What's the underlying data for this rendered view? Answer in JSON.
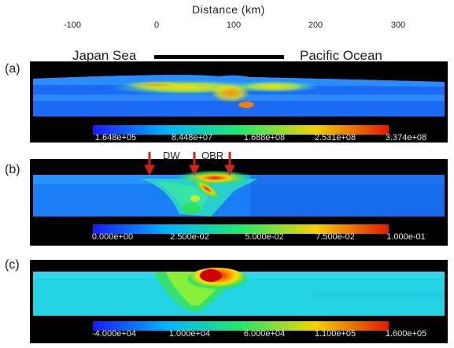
{
  "axis": {
    "title": "Distance (km)",
    "ticks": [
      "-100",
      "0",
      "100",
      "200",
      "300"
    ]
  },
  "regions": {
    "left": "Japan Sea",
    "right": "Pacific Ocean"
  },
  "panels": [
    {
      "label": "(a)",
      "colorbar": [
        "1.648e+05",
        "8.448e+07",
        "1.688e+08",
        "2.531e+08",
        "3.374e+08"
      ]
    },
    {
      "label": "(b)",
      "colorbar": [
        "0.000e+00",
        "2.500e-02",
        "5.000e-02",
        "7.500e-02",
        "1.000e-01"
      ]
    },
    {
      "label": "(c)",
      "colorbar": [
        "-4.000e+04",
        "1.000e+04",
        "6.000e+04",
        "1.100e+05",
        "1.600e+05"
      ]
    }
  ],
  "annotations": {
    "dw": "DW",
    "obr": "OBR"
  },
  "colors": {
    "arrow": "#d42020",
    "bar": "#000000"
  }
}
